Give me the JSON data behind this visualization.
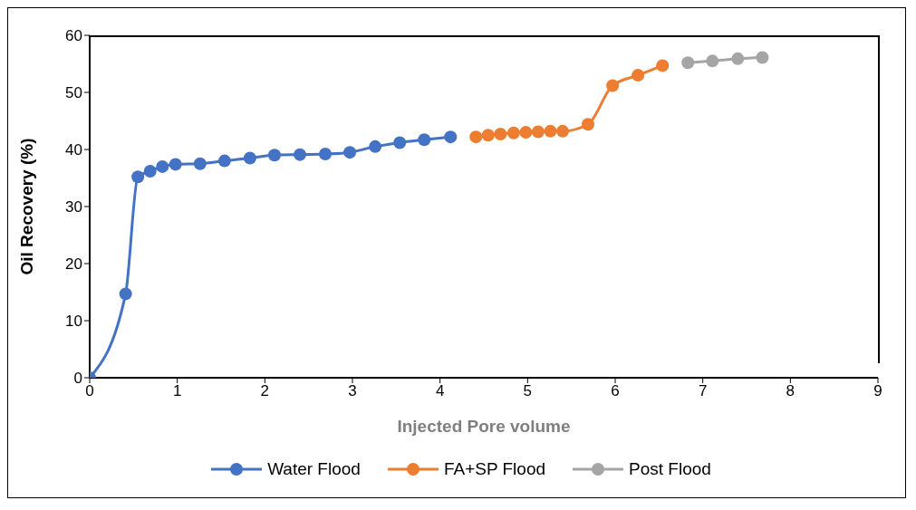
{
  "chart_data": {
    "type": "line",
    "xlabel": "Injected Pore volume",
    "ylabel": "Oil Recovery (%)",
    "xlim": [
      0,
      9
    ],
    "xticks": [
      0,
      1,
      2,
      3,
      4,
      5,
      6,
      7,
      8,
      9
    ],
    "ylim": [
      0,
      60
    ],
    "yticks": [
      0,
      10,
      20,
      30,
      40,
      50,
      60
    ],
    "grid": false,
    "legend": "bottom",
    "marker": "circle",
    "line_style": "solid",
    "series": [
      {
        "name": "Water Flood",
        "color": "#4472c4",
        "x": [
          0,
          0.41,
          0.55,
          0.69,
          0.83,
          0.98,
          1.26,
          1.54,
          1.83,
          2.11,
          2.4,
          2.69,
          2.97,
          3.26,
          3.54,
          3.82,
          4.12
        ],
        "values": [
          0,
          14.7,
          35.2,
          36.2,
          37.0,
          37.4,
          37.5,
          38.0,
          38.5,
          39.0,
          39.1,
          39.2,
          39.5,
          40.5,
          41.2,
          41.7,
          42.2
        ]
      },
      {
        "name": "FA+SP Flood",
        "color": "#ed7d31",
        "x": [
          4.41,
          4.55,
          4.69,
          4.84,
          4.98,
          5.12,
          5.26,
          5.4,
          5.69,
          5.97,
          6.26,
          6.54
        ],
        "values": [
          42.2,
          42.5,
          42.7,
          42.9,
          43.0,
          43.1,
          43.2,
          43.2,
          44.4,
          51.2,
          53.0,
          54.7
        ]
      },
      {
        "name": "Post Flood",
        "color": "#a5a5a5",
        "x": [
          6.83,
          7.11,
          7.4,
          7.68
        ],
        "values": [
          55.2,
          55.5,
          55.9,
          56.1
        ]
      }
    ]
  }
}
